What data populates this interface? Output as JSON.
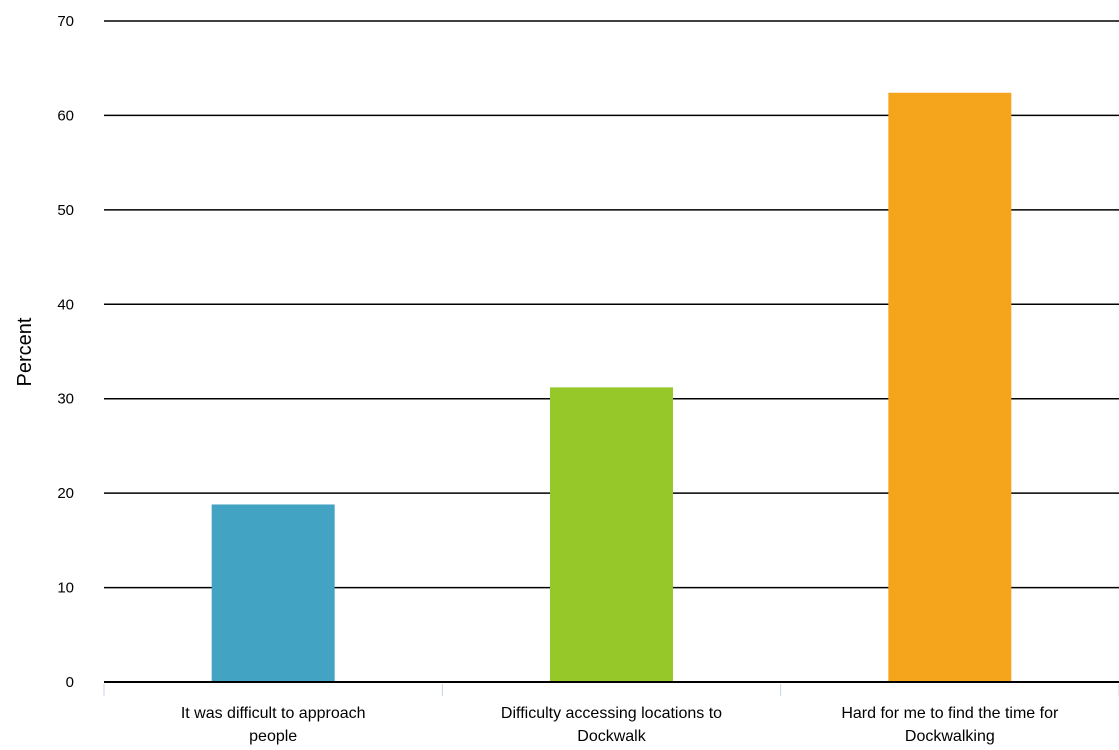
{
  "chart_data": {
    "type": "bar",
    "title": "",
    "xlabel": "",
    "ylabel": "Percent",
    "ylim": [
      0,
      70
    ],
    "yticks": [
      0,
      10,
      20,
      30,
      40,
      50,
      60,
      70
    ],
    "grid": true,
    "legend": "none",
    "categories": [
      [
        "It was difficult to approach",
        "people"
      ],
      [
        "Difficulty accessing locations to",
        "Dockwalk"
      ],
      [
        "Hard for me to find the time for",
        "Dockwalking"
      ]
    ],
    "values": [
      18.8,
      31.2,
      62.4
    ],
    "colors": [
      "#42a3c3",
      "#97c829",
      "#f5a51b"
    ]
  }
}
